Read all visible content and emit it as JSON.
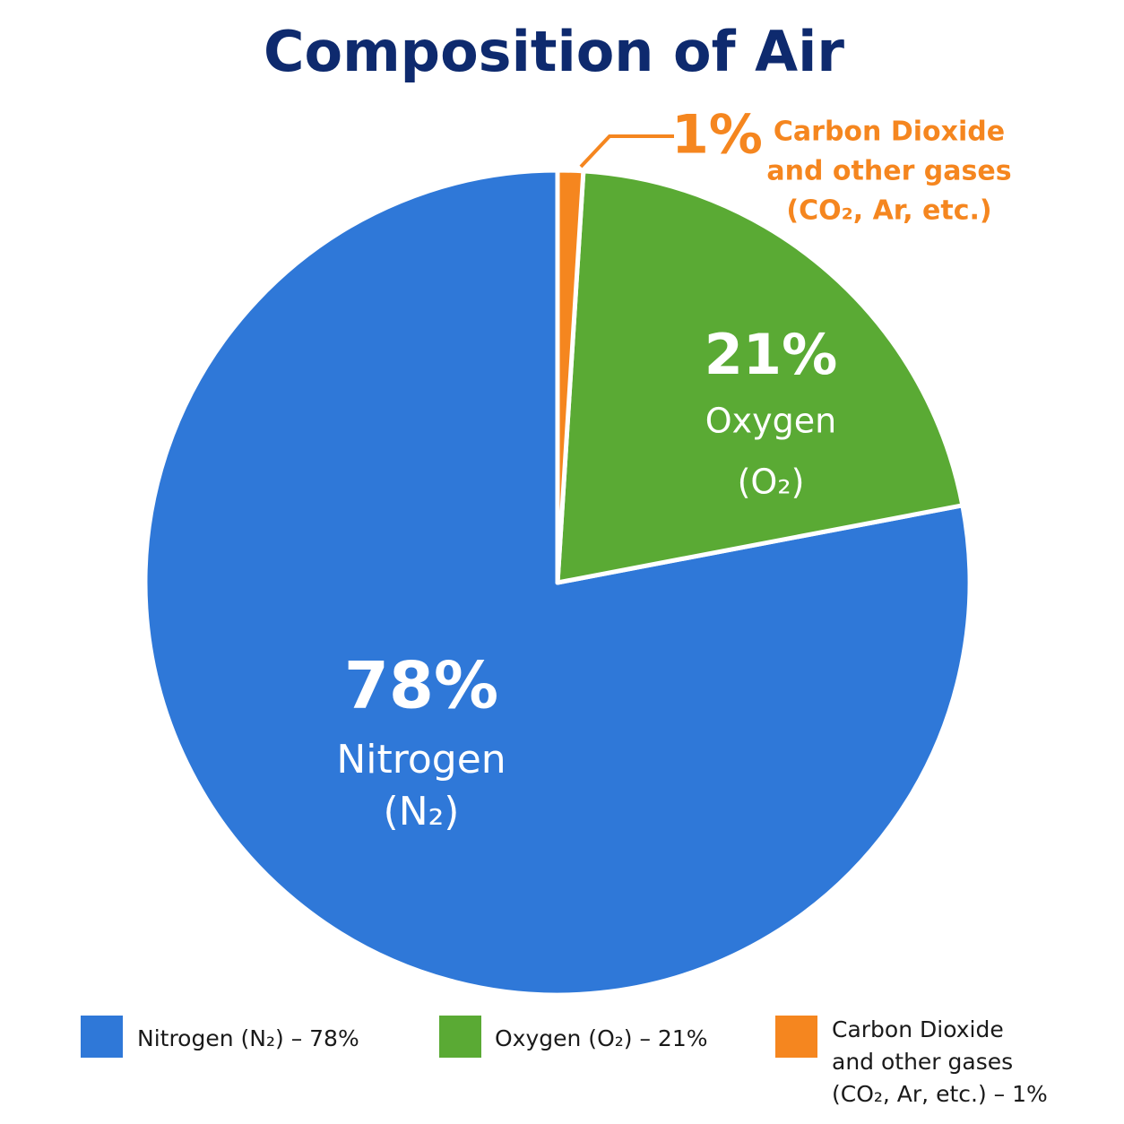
{
  "chart_data": {
    "type": "pie",
    "title": "Composition of Air",
    "slice_labels": [
      [
        "Nitrogen",
        "(N₂)"
      ],
      [
        "Oxygen",
        "(O₂)"
      ],
      [
        "Carbon Dioxide",
        "and other gases",
        "(CO₂, Ar, etc.)"
      ]
    ],
    "values": [
      78,
      21,
      1
    ],
    "value_labels": [
      "78%",
      "21%",
      "1%"
    ],
    "colors": [
      "#2f78d8",
      "#5aaa34",
      "#f5861f"
    ],
    "legend_labels": [
      [
        "Nitrogen (N₂) – 78%"
      ],
      [
        "Oxygen (O₂) – 21%"
      ],
      [
        "Carbon Dioxide",
        "and other gases",
        "(CO₂, Ar, etc.) – 1%"
      ]
    ]
  }
}
